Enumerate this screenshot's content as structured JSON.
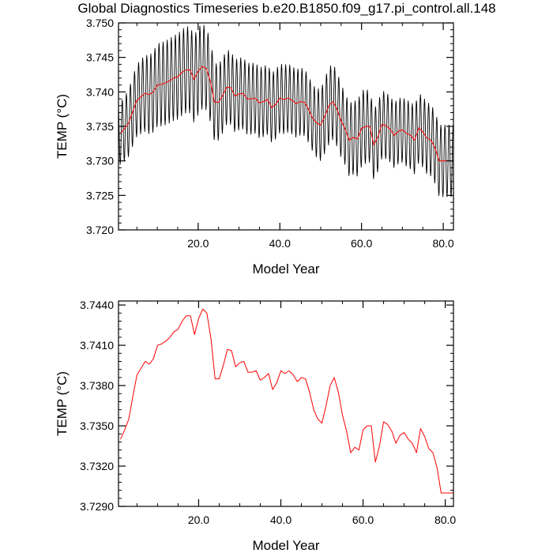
{
  "figure_title": "Global Diagnostics Timeseries b.e20.B1850.f09_g17.pi_control.all.148",
  "colors": {
    "monthly": "#000000",
    "annual": "#ff0000",
    "axis": "#000000",
    "background": "#ffffff"
  },
  "chart_data": [
    {
      "type": "line",
      "title": "",
      "xlabel": "Model Year",
      "ylabel": "TEMP (°C)",
      "xlim": [
        0.5,
        82.5
      ],
      "ylim": [
        3.72,
        3.75
      ],
      "xticks": [
        20,
        40,
        60,
        80
      ],
      "xtick_labels": [
        "20.0",
        "40.0",
        "60.0",
        "80.0"
      ],
      "yticks": [
        3.72,
        3.725,
        3.73,
        3.735,
        3.74,
        3.745,
        3.75
      ],
      "ytick_labels": [
        "3.720",
        "3.725",
        "3.730",
        "3.735",
        "3.740",
        "3.745",
        "3.750"
      ],
      "grid": false,
      "legend": "none",
      "series": [
        {
          "style": "monthly-cycle",
          "color": "#000000",
          "x_start": 0.5,
          "x_end": 82.5,
          "samples_per_year": 12,
          "amplitude_x": [
            1,
            5,
            10,
            15,
            20,
            22,
            25,
            30,
            40,
            48,
            52,
            56,
            60,
            62,
            66,
            70,
            76,
            80,
            82
          ],
          "amplitude": [
            0.0045,
            0.0052,
            0.006,
            0.0062,
            0.0063,
            0.006,
            0.0055,
            0.0052,
            0.005,
            0.0048,
            0.0056,
            0.0052,
            0.0055,
            0.0052,
            0.0048,
            0.0047,
            0.0052,
            0.0052,
            0.0052
          ],
          "phase": 0.5
        },
        {
          "style": "annual-mean",
          "color": "#ff0000",
          "x": [
            1,
            2,
            3,
            4,
            5,
            6,
            7,
            8,
            9,
            10,
            11,
            12,
            13,
            14,
            15,
            16,
            17,
            18,
            19,
            20,
            21,
            22,
            23,
            24,
            25,
            26,
            27,
            28,
            29,
            30,
            31,
            32,
            33,
            34,
            35,
            36,
            37,
            38,
            39,
            40,
            41,
            42,
            43,
            44,
            45,
            46,
            47,
            48,
            49,
            50,
            51,
            52,
            53,
            54,
            55,
            56,
            57,
            58,
            59,
            60,
            61,
            62,
            63,
            64,
            65,
            66,
            67,
            68,
            69,
            70,
            71,
            72,
            73,
            74,
            75,
            76,
            77,
            78,
            79,
            80,
            81,
            82
          ],
          "y": [
            3.734,
            3.7347,
            3.7355,
            3.7372,
            3.7388,
            3.7393,
            3.7398,
            3.7396,
            3.74,
            3.741,
            3.7411,
            3.7413,
            3.7416,
            3.742,
            3.7422,
            3.7428,
            3.7432,
            3.7432,
            3.7418,
            3.743,
            3.7437,
            3.7434,
            3.7415,
            3.7385,
            3.7385,
            3.7395,
            3.7407,
            3.7406,
            3.7394,
            3.7397,
            3.7398,
            3.739,
            3.739,
            3.7391,
            3.7384,
            3.7386,
            3.7389,
            3.7377,
            3.7382,
            3.7391,
            3.7389,
            3.7391,
            3.7388,
            3.7383,
            3.7386,
            3.7385,
            3.7375,
            3.7362,
            3.7355,
            3.7352,
            3.7365,
            3.738,
            3.7386,
            3.7375,
            3.7358,
            3.7346,
            3.733,
            3.7334,
            3.7332,
            3.7347,
            3.735,
            3.735,
            3.7323,
            3.7335,
            3.7353,
            3.7351,
            3.7346,
            3.7337,
            3.7343,
            3.7345,
            3.734,
            3.7337,
            3.733,
            3.7348,
            3.7342,
            3.7333,
            3.733,
            3.7319,
            3.73,
            3.73,
            3.73,
            3.73
          ]
        }
      ]
    },
    {
      "type": "line",
      "title": "",
      "xlabel": "Model Year",
      "ylabel": "TEMP (°C)",
      "xlim": [
        0.5,
        82
      ],
      "ylim": [
        3.729,
        3.7443
      ],
      "xticks": [
        20,
        40,
        60,
        80
      ],
      "xtick_labels": [
        "20.0",
        "40.0",
        "60.0",
        "80.0"
      ],
      "yticks": [
        3.729,
        3.732,
        3.735,
        3.738,
        3.741,
        3.744
      ],
      "ytick_labels": [
        "3.7290",
        "3.7320",
        "3.7350",
        "3.7380",
        "3.7410",
        "3.7440"
      ],
      "grid": false,
      "legend": "none",
      "series": [
        {
          "style": "annual-mean",
          "color": "#ff0000",
          "x": [
            1,
            2,
            3,
            4,
            5,
            6,
            7,
            8,
            9,
            10,
            11,
            12,
            13,
            14,
            15,
            16,
            17,
            18,
            19,
            20,
            21,
            22,
            23,
            24,
            25,
            26,
            27,
            28,
            29,
            30,
            31,
            32,
            33,
            34,
            35,
            36,
            37,
            38,
            39,
            40,
            41,
            42,
            43,
            44,
            45,
            46,
            47,
            48,
            49,
            50,
            51,
            52,
            53,
            54,
            55,
            56,
            57,
            58,
            59,
            60,
            61,
            62,
            63,
            64,
            65,
            66,
            67,
            68,
            69,
            70,
            71,
            72,
            73,
            74,
            75,
            76,
            77,
            78,
            79,
            80,
            81,
            82
          ],
          "y": [
            3.734,
            3.7347,
            3.7355,
            3.7372,
            3.7388,
            3.7393,
            3.7398,
            3.7396,
            3.74,
            3.741,
            3.7411,
            3.7413,
            3.7416,
            3.742,
            3.7422,
            3.7428,
            3.7432,
            3.7432,
            3.7418,
            3.743,
            3.7437,
            3.7434,
            3.7415,
            3.7385,
            3.7385,
            3.7395,
            3.7407,
            3.7406,
            3.7394,
            3.7397,
            3.7398,
            3.739,
            3.739,
            3.7391,
            3.7384,
            3.7386,
            3.7389,
            3.7377,
            3.7382,
            3.7391,
            3.7389,
            3.7391,
            3.7388,
            3.7383,
            3.7386,
            3.7385,
            3.7375,
            3.7362,
            3.7355,
            3.7352,
            3.7365,
            3.738,
            3.7386,
            3.7375,
            3.7358,
            3.7346,
            3.733,
            3.7334,
            3.7332,
            3.7347,
            3.735,
            3.735,
            3.7323,
            3.7335,
            3.7353,
            3.7351,
            3.7346,
            3.7337,
            3.7343,
            3.7345,
            3.734,
            3.7337,
            3.733,
            3.7348,
            3.7342,
            3.7333,
            3.733,
            3.7319,
            3.73,
            3.73,
            3.73,
            3.73
          ]
        }
      ]
    }
  ]
}
